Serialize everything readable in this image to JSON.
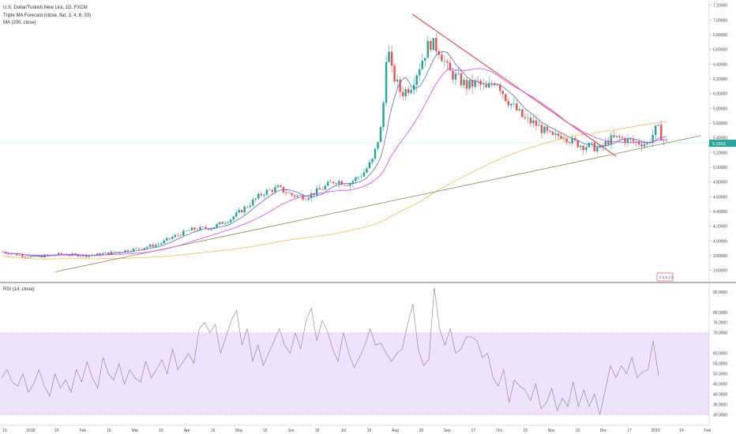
{
  "legend": {
    "symbol": "U.S. Dollar/Turkish New Lira, 1D, FXCM",
    "indicator1": "Triple MA Forecast (close, flat, 3, 4, 8, 33)",
    "indicator2": "MA (200, close)"
  },
  "rsi_label": "RSI (14, close)",
  "current_price_label": "5.3303",
  "watermark_text": "2 5 5 2 0",
  "colors": {
    "bull": "#26a69a",
    "bear": "#ef5350",
    "ma_pink": "#e040fb",
    "ma_blue": "#5c6bc0",
    "ma_orange": "#ffb74d",
    "trend_red": "#e53935",
    "trend_green": "#7b8f4f",
    "rsi_band": "#efe3fb",
    "rsi_line": "#8a7a9a",
    "price_tag": "#26a69a"
  },
  "chart_data": [
    {
      "type": "candlestick",
      "price_axis_ticks": [
        "7.20000",
        "7.00000",
        "6.80000",
        "6.60000",
        "6.40000",
        "6.20000",
        "6.00000",
        "5.80000",
        "5.60000",
        "5.40000",
        "5.20000",
        "5.00000",
        "4.80000",
        "4.60000",
        "4.40000",
        "4.20000",
        "4.00000",
        "3.80000",
        "3.60000"
      ],
      "ylim": [
        3.5,
        7.24
      ],
      "time_axis_labels": [
        "15",
        "2018",
        "16",
        "Feb",
        "15",
        "Mar",
        "19",
        "Apr",
        "16",
        "May",
        "15",
        "Jun",
        "18",
        "Jul",
        "16",
        "Aug",
        "20",
        "Sep",
        "17",
        "Oct",
        "15",
        "Nov",
        "19",
        "Dec",
        "17",
        "2019",
        "14",
        "Feb"
      ],
      "key_levels": {
        "start": 3.85,
        "first_rise_high": 4.95,
        "peak_high": 7.08,
        "sep_high": 6.8,
        "low_dec": 5.15,
        "last_spike": 5.63,
        "last": 5.33
      }
    },
    {
      "type": "line",
      "name": "RSI (14, close)",
      "axis_ticks": [
        "90.0000",
        "80.0000",
        "75.0000",
        "70.0000",
        "60.0000",
        "55.0000",
        "50.0000",
        "45.0000",
        "40.0000",
        "35.0000",
        "30.0000"
      ],
      "band": [
        30,
        70
      ],
      "ylim": [
        26,
        93
      ],
      "values": [
        48,
        52,
        46,
        44,
        50,
        41,
        45,
        52,
        44,
        39,
        50,
        43,
        47,
        41,
        52,
        46,
        56,
        48,
        43,
        58,
        50,
        47,
        55,
        45,
        52,
        48,
        46,
        56,
        48,
        52,
        57,
        50,
        62,
        52,
        56,
        60,
        55,
        72,
        75,
        70,
        74,
        60,
        68,
        76,
        81,
        64,
        72,
        56,
        64,
        54,
        60,
        66,
        72,
        64,
        60,
        70,
        62,
        76,
        82,
        66,
        76,
        71,
        62,
        56,
        70,
        60,
        53,
        58,
        64,
        72,
        64,
        65,
        60,
        56,
        60,
        62,
        74,
        84,
        62,
        54,
        57,
        92,
        72,
        64,
        72,
        60,
        62,
        68,
        68,
        66,
        58,
        60,
        48,
        44,
        52,
        36,
        47,
        44,
        42,
        37,
        45,
        33,
        36,
        43,
        32,
        38,
        34,
        46,
        34,
        42,
        34,
        40,
        30,
        42,
        54,
        48,
        54,
        50,
        58,
        48,
        51,
        52,
        66,
        49
      ]
    }
  ]
}
